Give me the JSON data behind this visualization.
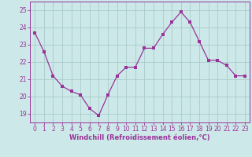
{
  "x": [
    0,
    1,
    2,
    3,
    4,
    5,
    6,
    7,
    8,
    9,
    10,
    11,
    12,
    13,
    14,
    15,
    16,
    17,
    18,
    19,
    20,
    21,
    22,
    23
  ],
  "y": [
    23.7,
    22.6,
    21.2,
    20.6,
    20.3,
    20.1,
    19.3,
    18.9,
    20.1,
    21.2,
    21.7,
    21.7,
    22.8,
    22.8,
    23.6,
    24.3,
    24.9,
    24.3,
    23.2,
    22.1,
    22.1,
    21.8,
    21.2,
    21.2
  ],
  "line_color": "#993399",
  "marker_color": "#993399",
  "bg_color": "#cce8e8",
  "grid_color": "#aacccc",
  "axis_color": "#993399",
  "spine_color": "#993399",
  "ylabel_ticks": [
    19,
    20,
    21,
    22,
    23,
    24,
    25
  ],
  "ylim": [
    18.5,
    25.5
  ],
  "xlim": [
    -0.5,
    23.5
  ],
  "xlabel": "Windchill (Refroidissement éolien,°C)",
  "tick_fontsize": 5.5,
  "xlabel_fontsize": 6.0
}
